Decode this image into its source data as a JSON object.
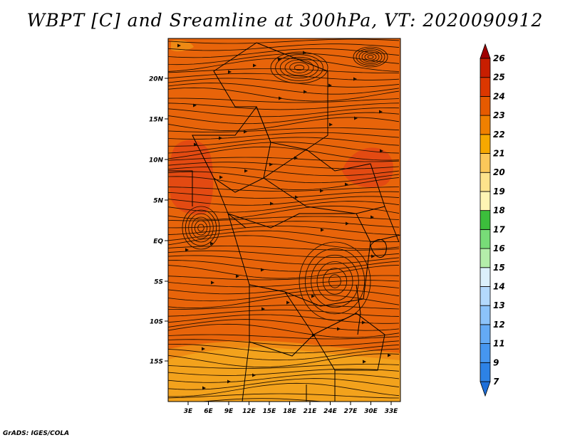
{
  "title": "WBPT [C] and Sreamline at 300hPa, VT: 2020090912",
  "credit": "GrADS: IGES/COLA",
  "map": {
    "lon_labels": [
      "3E",
      "6E",
      "9E",
      "12E",
      "15E",
      "18E",
      "21E",
      "24E",
      "27E",
      "30E",
      "33E"
    ],
    "lat_labels": [
      "20N",
      "15N",
      "10N",
      "5N",
      "EQ",
      "5S",
      "10S",
      "15S"
    ]
  },
  "colorbar": {
    "labels": [
      "7",
      "9",
      "11",
      "12",
      "13",
      "14",
      "15",
      "16",
      "17",
      "18",
      "19",
      "20",
      "21",
      "22",
      "23",
      "24",
      "25",
      "26"
    ],
    "colors": [
      "#1e6fd9",
      "#2d82e6",
      "#4696f0",
      "#64aaf5",
      "#8cc3fa",
      "#b4d9fc",
      "#dcf0fb",
      "#b4eeaa",
      "#78dc78",
      "#3cbe3c",
      "#fff5b4",
      "#fde38c",
      "#fbc85a",
      "#f6a800",
      "#f08000",
      "#e65a00",
      "#dc3700",
      "#c81e00",
      "#a00000"
    ]
  },
  "palette": {
    "field_main": "#e8640a",
    "field_south": "#f3a21c",
    "field_hot": "#e34a12",
    "field_mid": "#ee8a14"
  }
}
